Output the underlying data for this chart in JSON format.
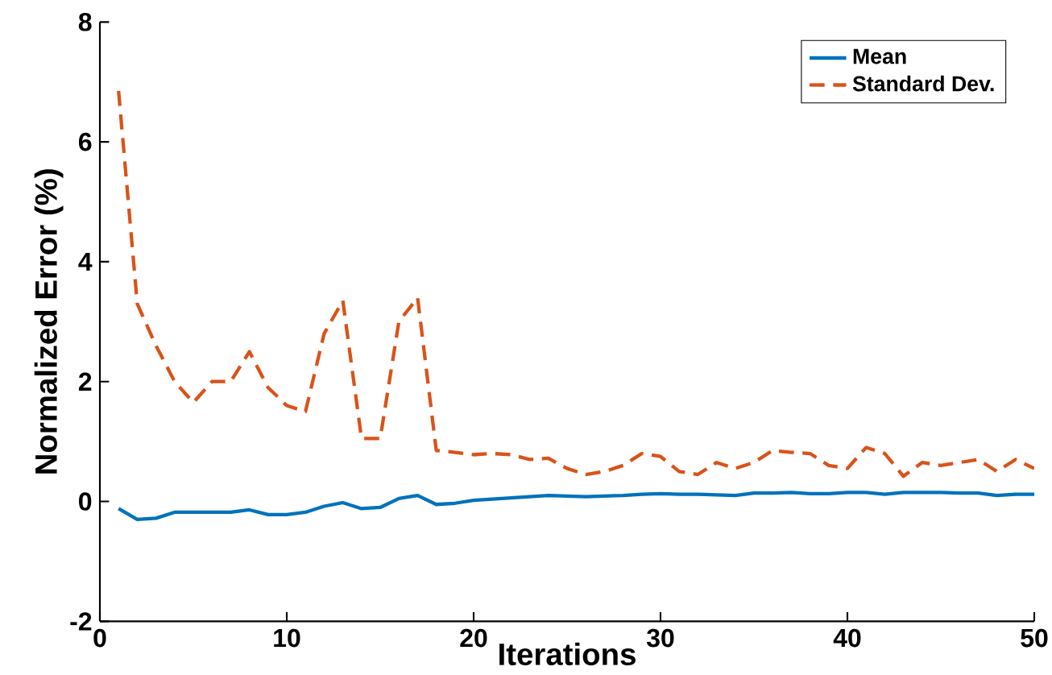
{
  "chart_data": {
    "type": "line",
    "xlabel": "Iterations",
    "ylabel": "Normalized Error (%)",
    "x": [
      1,
      2,
      3,
      4,
      5,
      6,
      7,
      8,
      9,
      10,
      11,
      12,
      13,
      14,
      15,
      16,
      17,
      18,
      19,
      20,
      21,
      22,
      23,
      24,
      25,
      26,
      27,
      28,
      29,
      30,
      31,
      32,
      33,
      34,
      35,
      36,
      37,
      38,
      39,
      40,
      41,
      42,
      43,
      44,
      45,
      46,
      47,
      48,
      49,
      50
    ],
    "series": [
      {
        "name": "Mean",
        "color": "#0072bd",
        "line_style": "solid",
        "values": [
          -0.12,
          -0.3,
          -0.28,
          -0.18,
          -0.18,
          -0.18,
          -0.18,
          -0.14,
          -0.22,
          -0.22,
          -0.18,
          -0.08,
          -0.02,
          -0.12,
          -0.1,
          0.05,
          0.1,
          -0.05,
          -0.03,
          0.02,
          0.04,
          0.06,
          0.08,
          0.1,
          0.09,
          0.08,
          0.09,
          0.1,
          0.12,
          0.13,
          0.12,
          0.12,
          0.11,
          0.1,
          0.14,
          0.14,
          0.15,
          0.13,
          0.13,
          0.15,
          0.15,
          0.12,
          0.15,
          0.15,
          0.15,
          0.14,
          0.14,
          0.1,
          0.12,
          0.12
        ]
      },
      {
        "name": "Standard Dev.",
        "color": "#d95319",
        "line_style": "dashed",
        "values": [
          6.85,
          3.3,
          2.6,
          2.0,
          1.65,
          2.0,
          2.0,
          2.5,
          1.9,
          1.6,
          1.5,
          2.8,
          3.35,
          1.05,
          1.05,
          3.0,
          3.4,
          0.85,
          0.82,
          0.78,
          0.8,
          0.78,
          0.7,
          0.72,
          0.55,
          0.45,
          0.5,
          0.6,
          0.8,
          0.75,
          0.5,
          0.45,
          0.65,
          0.55,
          0.65,
          0.85,
          0.82,
          0.8,
          0.6,
          0.55,
          0.9,
          0.8,
          0.42,
          0.65,
          0.6,
          0.65,
          0.7,
          0.5,
          0.7,
          0.55
        ]
      }
    ],
    "xlim": [
      0,
      50
    ],
    "ylim": [
      -2,
      8
    ],
    "xticks": [
      0,
      10,
      20,
      30,
      40,
      50
    ],
    "yticks": [
      -2,
      0,
      2,
      4,
      6,
      8
    ],
    "grid": false,
    "legend": "top right",
    "marker": "none"
  }
}
